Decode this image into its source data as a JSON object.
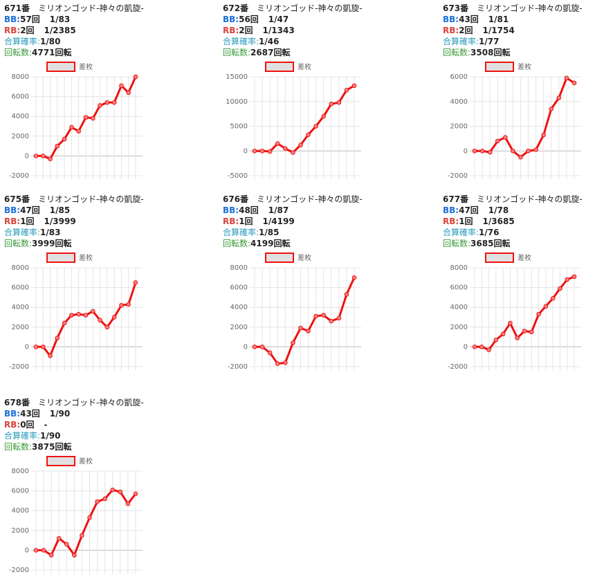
{
  "machines": [
    {
      "number": "671番",
      "name": "ミリオンゴッド-神々の凱旋-",
      "bb": {
        "label": "BB:",
        "count": "57回",
        "rate": "1/83"
      },
      "rb": {
        "label": "RB:",
        "count": "2回",
        "rate": "1/2385"
      },
      "total": {
        "label": "合算確率:",
        "value": "1/80"
      },
      "spins": {
        "label": "回転数:",
        "value": "4771回転"
      }
    },
    {
      "number": "672番",
      "name": "ミリオンゴッド-神々の凱旋-",
      "bb": {
        "label": "BB:",
        "count": "56回",
        "rate": "1/47"
      },
      "rb": {
        "label": "RB:",
        "count": "2回",
        "rate": "1/1343"
      },
      "total": {
        "label": "合算確率:",
        "value": "1/46"
      },
      "spins": {
        "label": "回転数:",
        "value": "2687回転"
      }
    },
    {
      "number": "673番",
      "name": "ミリオンゴッド-神々の凱旋-",
      "bb": {
        "label": "BB:",
        "count": "43回",
        "rate": "1/81"
      },
      "rb": {
        "label": "RB:",
        "count": "2回",
        "rate": "1/1754"
      },
      "total": {
        "label": "合算確率:",
        "value": "1/77"
      },
      "spins": {
        "label": "回転数:",
        "value": "3508回転"
      }
    },
    {
      "number": "675番",
      "name": "ミリオンゴッド-神々の凱旋-",
      "bb": {
        "label": "BB:",
        "count": "47回",
        "rate": "1/85"
      },
      "rb": {
        "label": "RB:",
        "count": "1回",
        "rate": "1/3999"
      },
      "total": {
        "label": "合算確率:",
        "value": "1/83"
      },
      "spins": {
        "label": "回転数:",
        "value": "3999回転"
      }
    },
    {
      "number": "676番",
      "name": "ミリオンゴッド-神々の凱旋-",
      "bb": {
        "label": "BB:",
        "count": "48回",
        "rate": "1/87"
      },
      "rb": {
        "label": "RB:",
        "count": "1回",
        "rate": "1/4199"
      },
      "total": {
        "label": "合算確率:",
        "value": "1/85"
      },
      "spins": {
        "label": "回転数:",
        "value": "4199回転"
      }
    },
    {
      "number": "677番",
      "name": "ミリオンゴッド-神々の凱旋-",
      "bb": {
        "label": "BB:",
        "count": "47回",
        "rate": "1/78"
      },
      "rb": {
        "label": "RB:",
        "count": "1回",
        "rate": "1/3685"
      },
      "total": {
        "label": "合算確率:",
        "value": "1/76"
      },
      "spins": {
        "label": "回転数:",
        "value": "3685回転"
      }
    },
    {
      "number": "678番",
      "name": "ミリオンゴッド-神々の凱旋-",
      "bb": {
        "label": "BB:",
        "count": "43回",
        "rate": "1/90"
      },
      "rb": {
        "label": "RB:",
        "count": "0回",
        "rate": "-"
      },
      "total": {
        "label": "合算確率:",
        "value": "1/90"
      },
      "spins": {
        "label": "回転数:",
        "value": "3875回転"
      }
    }
  ],
  "chart_data": [
    {
      "type": "line",
      "grid": true,
      "ylim": [
        -2000,
        8000
      ],
      "yticks": [
        -2000,
        0,
        2000,
        4000,
        6000,
        8000
      ],
      "series": [
        {
          "name": "差枚",
          "color": "#ee1111",
          "values": [
            0,
            0,
            -300,
            1000,
            1700,
            2900,
            2500,
            3900,
            3800,
            5100,
            5400,
            5400,
            7100,
            6400,
            8000
          ]
        }
      ]
    },
    {
      "type": "line",
      "grid": true,
      "ylim": [
        -5000,
        15000
      ],
      "yticks": [
        -5000,
        0,
        5000,
        10000,
        15000
      ],
      "series": [
        {
          "name": "差枚",
          "color": "#ee1111",
          "values": [
            0,
            0,
            -100,
            1500,
            500,
            -300,
            1200,
            3300,
            5000,
            7000,
            9500,
            9800,
            12300,
            13200
          ]
        }
      ]
    },
    {
      "type": "line",
      "grid": true,
      "ylim": [
        -2000,
        6000
      ],
      "yticks": [
        -2000,
        0,
        2000,
        4000,
        6000
      ],
      "series": [
        {
          "name": "差枚",
          "color": "#ee1111",
          "values": [
            0,
            0,
            -100,
            800,
            1100,
            0,
            -500,
            0,
            100,
            1300,
            3400,
            4300,
            5900,
            5500
          ]
        }
      ]
    },
    {
      "type": "line",
      "grid": true,
      "ylim": [
        -2000,
        8000
      ],
      "yticks": [
        -2000,
        0,
        2000,
        4000,
        6000,
        8000
      ],
      "series": [
        {
          "name": "差枚",
          "color": "#ee1111",
          "values": [
            0,
            0,
            -900,
            900,
            2400,
            3200,
            3300,
            3200,
            3600,
            2700,
            2000,
            3000,
            4200,
            4300,
            6500
          ]
        }
      ]
    },
    {
      "type": "line",
      "grid": true,
      "ylim": [
        -2000,
        8000
      ],
      "yticks": [
        -2000,
        0,
        2000,
        4000,
        6000,
        8000
      ],
      "series": [
        {
          "name": "差枚",
          "color": "#ee1111",
          "values": [
            0,
            0,
            -600,
            -1700,
            -1600,
            400,
            1900,
            1600,
            3100,
            3200,
            2600,
            2900,
            5300,
            7000
          ]
        }
      ]
    },
    {
      "type": "line",
      "grid": true,
      "ylim": [
        -2000,
        8000
      ],
      "yticks": [
        -2000,
        0,
        2000,
        4000,
        6000,
        8000
      ],
      "series": [
        {
          "name": "差枚",
          "color": "#ee1111",
          "values": [
            0,
            0,
            -300,
            700,
            1300,
            2400,
            900,
            1600,
            1500,
            3300,
            4100,
            4900,
            5900,
            6800,
            7100
          ]
        }
      ]
    },
    {
      "type": "line",
      "grid": true,
      "ylim": [
        -2000,
        8000
      ],
      "yticks": [
        -2000,
        0,
        2000,
        4000,
        6000,
        8000
      ],
      "series": [
        {
          "name": "差枚",
          "color": "#ee1111",
          "values": [
            0,
            0,
            -500,
            1200,
            600,
            -500,
            1500,
            3300,
            4900,
            5200,
            6100,
            5900,
            4700,
            5700
          ]
        }
      ]
    }
  ]
}
